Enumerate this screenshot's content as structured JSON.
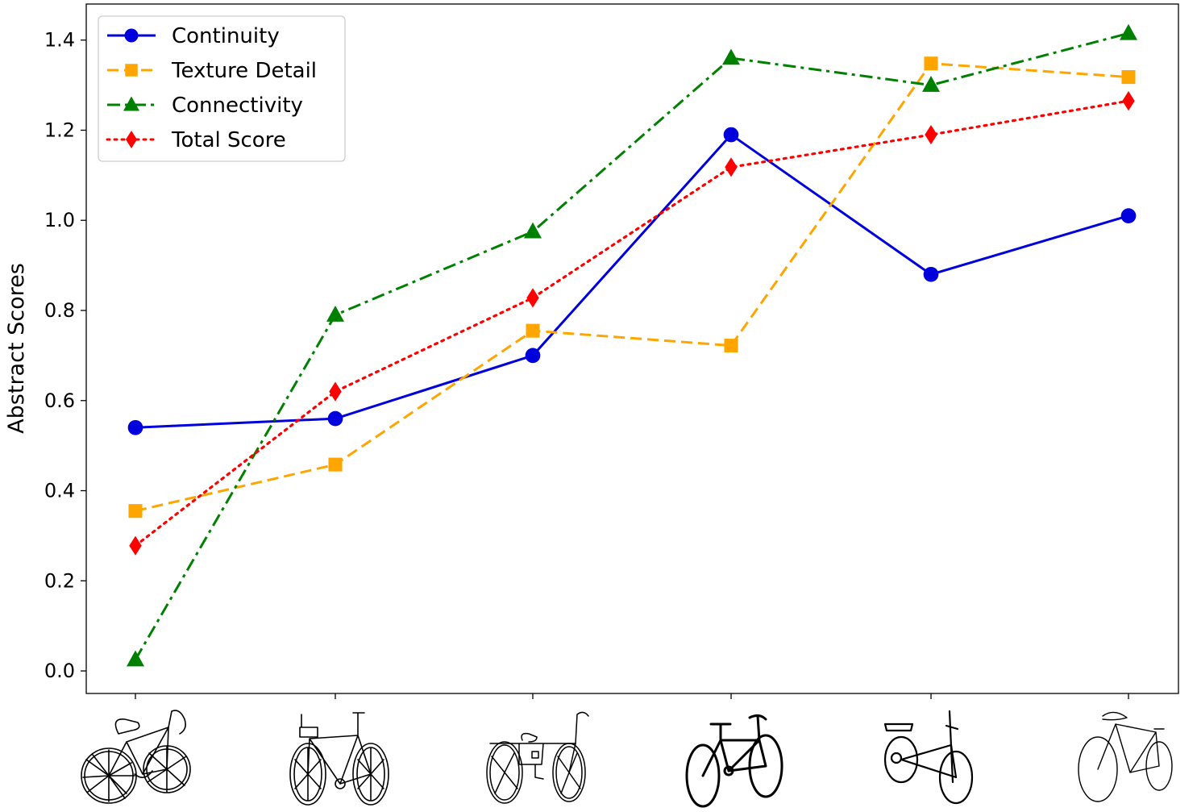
{
  "chart_data": {
    "type": "line",
    "title": "",
    "xlabel": "",
    "ylabel": "Abstract Scores",
    "categories": [
      "bicycle sketch 1",
      "bicycle sketch 2",
      "bicycle sketch 3",
      "bicycle sketch 4",
      "bicycle sketch 5",
      "bicycle sketch 6"
    ],
    "ylim": [
      -0.05,
      1.48
    ],
    "yticks": [
      0.0,
      0.2,
      0.4,
      0.6,
      0.8,
      1.0,
      1.2,
      1.4
    ],
    "ytick_labels": [
      "0.0",
      "0.2",
      "0.4",
      "0.6",
      "0.8",
      "1.0",
      "1.2",
      "1.4"
    ],
    "legend_position": "upper-left",
    "series": [
      {
        "name": "Continuity",
        "color": "#0000dd",
        "linestyle": "solid",
        "marker": "circle",
        "values": [
          0.54,
          0.56,
          0.7,
          1.19,
          0.88,
          1.01
        ]
      },
      {
        "name": "Texture Detail",
        "color": "#ffa500",
        "linestyle": "dashed",
        "marker": "square",
        "values": [
          0.355,
          0.458,
          0.755,
          0.722,
          1.348,
          1.318
        ]
      },
      {
        "name": "Connectivity",
        "color": "#008000",
        "linestyle": "dashdot",
        "marker": "triangle",
        "values": [
          0.025,
          0.79,
          0.975,
          1.36,
          1.3,
          1.415
        ]
      },
      {
        "name": "Total Score",
        "color": "#ff0000",
        "linestyle": "dotted",
        "marker": "diamond",
        "values": [
          0.278,
          0.62,
          0.828,
          1.118,
          1.19,
          1.265
        ]
      }
    ]
  }
}
